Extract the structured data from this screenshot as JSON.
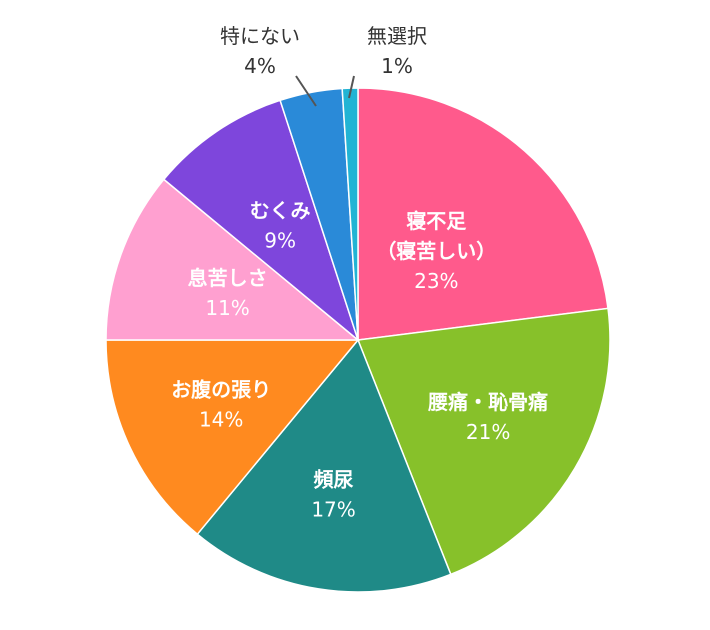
{
  "chart_data": {
    "type": "pie",
    "start": "top",
    "direction": "clockwise",
    "slices": [
      {
        "label": "寝不足\n（寝苦しい）",
        "value": 23,
        "value_label": "23%",
        "color": "#ff5a8c",
        "label_color": "#ffffff",
        "position": "inside"
      },
      {
        "label": "腰痛・恥骨痛",
        "value": 21,
        "value_label": "21%",
        "color": "#87c12a",
        "label_color": "#ffffff",
        "position": "inside"
      },
      {
        "label": "頻尿",
        "value": 17,
        "value_label": "17%",
        "color": "#1f8a87",
        "label_color": "#ffffff",
        "position": "inside"
      },
      {
        "label": "お腹の張り",
        "value": 14,
        "value_label": "14%",
        "color": "#ff8a1f",
        "label_color": "#ffffff",
        "position": "inside"
      },
      {
        "label": "息苦しさ",
        "value": 11,
        "value_label": "11%",
        "color": "#ffa0d0",
        "label_color": "#ffffff",
        "position": "inside"
      },
      {
        "label": "むくみ",
        "value": 9,
        "value_label": "9%",
        "color": "#7e46dc",
        "label_color": "#ffffff",
        "position": "inside"
      },
      {
        "label": "特にない",
        "value": 4,
        "value_label": "4%",
        "color": "#2a8ad8",
        "label_color": "#333333",
        "position": "outside"
      },
      {
        "label": "無選択",
        "value": 1,
        "value_label": "1%",
        "color": "#22b4d4",
        "label_color": "#333333",
        "position": "outside"
      }
    ]
  }
}
